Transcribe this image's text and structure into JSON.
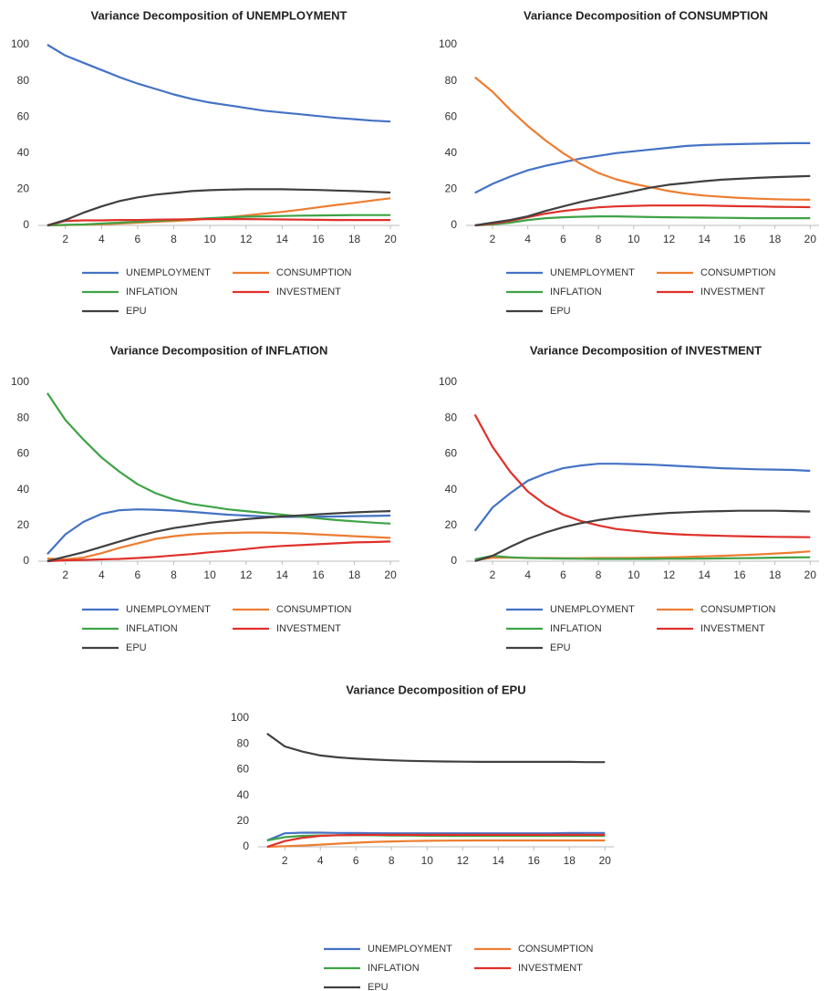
{
  "chart_data": [
    {
      "type": "line",
      "title": "Variance Decomposition of UNEMPLOYMENT",
      "x": [
        1,
        2,
        3,
        4,
        5,
        6,
        7,
        8,
        9,
        10,
        11,
        12,
        13,
        14,
        15,
        16,
        17,
        18,
        19,
        20
      ],
      "xlim": [
        0.5,
        20.5
      ],
      "xticks": [
        2,
        4,
        6,
        8,
        10,
        12,
        14,
        16,
        18,
        20
      ],
      "ylim": [
        0,
        100
      ],
      "yticks": [
        0,
        20,
        40,
        60,
        80,
        100
      ],
      "grid": false,
      "series": [
        {
          "name": "UNEMPLOYMENT",
          "color": "#4472c4",
          "values": [
            100,
            94,
            90,
            86,
            82,
            78.5,
            75.5,
            72.5,
            70,
            68,
            66.5,
            65,
            63.5,
            62.5,
            61.5,
            60.5,
            59.5,
            58.8,
            58,
            57.5
          ]
        },
        {
          "name": "CONSUMPTION",
          "color": "#ed7d31",
          "values": [
            0,
            0.2,
            0.4,
            0.6,
            1,
            1.5,
            2,
            2.5,
            3,
            3.7,
            4.5,
            5.5,
            6.5,
            7.5,
            8.7,
            10,
            11.3,
            12.5,
            13.8,
            15
          ]
        },
        {
          "name": "INFLATION",
          "color": "#3fa346",
          "values": [
            0,
            0.3,
            0.5,
            1,
            1.5,
            2,
            2.5,
            3,
            3.5,
            4,
            4.5,
            4.8,
            5,
            5.2,
            5.4,
            5.5,
            5.6,
            5.7,
            5.7,
            5.7
          ]
        },
        {
          "name": "INVESTMENT",
          "color": "#e0302a",
          "values": [
            0,
            2.5,
            2.8,
            2.8,
            3,
            3,
            3.2,
            3.3,
            3.4,
            3.5,
            3.5,
            3.5,
            3.4,
            3.3,
            3.2,
            3.1,
            3,
            3,
            3,
            3
          ]
        },
        {
          "name": "EPU",
          "color": "#404040",
          "values": [
            0,
            3,
            7,
            10.5,
            13.5,
            15.5,
            17,
            18,
            19,
            19.5,
            19.8,
            20,
            20,
            20,
            19.8,
            19.6,
            19.3,
            19,
            18.6,
            18.2
          ]
        }
      ]
    },
    {
      "type": "line",
      "title": "Variance Decomposition of CONSUMPTION",
      "x": [
        1,
        2,
        3,
        4,
        5,
        6,
        7,
        8,
        9,
        10,
        11,
        12,
        13,
        14,
        15,
        16,
        17,
        18,
        19,
        20
      ],
      "xlim": [
        0.5,
        20.5
      ],
      "xticks": [
        2,
        4,
        6,
        8,
        10,
        12,
        14,
        16,
        18,
        20
      ],
      "ylim": [
        0,
        100
      ],
      "yticks": [
        0,
        20,
        40,
        60,
        80,
        100
      ],
      "grid": false,
      "series": [
        {
          "name": "UNEMPLOYMENT",
          "color": "#4472c4",
          "values": [
            18,
            23,
            27,
            30.5,
            33,
            35,
            37,
            38.5,
            40,
            41,
            42,
            43,
            44,
            44.5,
            44.8,
            45,
            45.2,
            45.4,
            45.5,
            45.5
          ]
        },
        {
          "name": "CONSUMPTION",
          "color": "#ed7d31",
          "values": [
            82,
            74,
            64,
            55,
            47,
            40,
            34,
            29,
            25.5,
            23,
            21,
            19,
            17.5,
            16.5,
            15.8,
            15.2,
            14.8,
            14.5,
            14.3,
            14.2
          ]
        },
        {
          "name": "INFLATION",
          "color": "#3fa346",
          "values": [
            0,
            0.5,
            1.5,
            3,
            4,
            4.5,
            4.8,
            5,
            5,
            4.8,
            4.6,
            4.5,
            4.4,
            4.3,
            4.2,
            4.1,
            4,
            4,
            4,
            4
          ]
        },
        {
          "name": "INVESTMENT",
          "color": "#e0302a",
          "values": [
            0,
            1,
            2.5,
            4.5,
            6.5,
            8,
            9,
            10,
            10.5,
            10.8,
            11,
            11,
            11,
            11,
            10.8,
            10.6,
            10.5,
            10.3,
            10.2,
            10.1
          ]
        },
        {
          "name": "EPU",
          "color": "#404040",
          "values": [
            0,
            1.5,
            3,
            5,
            8,
            10.5,
            13,
            15,
            17,
            19,
            21,
            22.5,
            23.5,
            24.5,
            25.3,
            25.8,
            26.3,
            26.7,
            27,
            27.3
          ]
        }
      ]
    },
    {
      "type": "line",
      "title": "Variance Decomposition of INFLATION",
      "x": [
        1,
        2,
        3,
        4,
        5,
        6,
        7,
        8,
        9,
        10,
        11,
        12,
        13,
        14,
        15,
        16,
        17,
        18,
        19,
        20
      ],
      "xlim": [
        0.5,
        20.5
      ],
      "xticks": [
        2,
        4,
        6,
        8,
        10,
        12,
        14,
        16,
        18,
        20
      ],
      "ylim": [
        0,
        100
      ],
      "yticks": [
        0,
        20,
        40,
        60,
        80,
        100
      ],
      "grid": false,
      "series": [
        {
          "name": "UNEMPLOYMENT",
          "color": "#4472c4",
          "values": [
            4,
            15,
            22,
            26.5,
            28.5,
            29,
            28.8,
            28.3,
            27.6,
            26.8,
            26,
            25.5,
            25,
            24.8,
            24.8,
            24.9,
            25,
            25.2,
            25.3,
            25.5
          ]
        },
        {
          "name": "CONSUMPTION",
          "color": "#ed7d31",
          "values": [
            1.5,
            1,
            2,
            4.5,
            7.5,
            10,
            12.5,
            14,
            15,
            15.5,
            15.8,
            16,
            16,
            15.8,
            15.5,
            15,
            14.5,
            14,
            13.5,
            13
          ]
        },
        {
          "name": "INFLATION",
          "color": "#3fa346",
          "values": [
            94,
            79,
            68,
            58,
            50,
            43,
            38,
            34.5,
            32,
            30.5,
            29,
            28,
            27,
            26,
            25,
            24,
            23,
            22.3,
            21.6,
            21
          ]
        },
        {
          "name": "INVESTMENT",
          "color": "#e0302a",
          "values": [
            0,
            0.5,
            0.7,
            1,
            1.3,
            1.8,
            2.4,
            3.2,
            4,
            5,
            5.8,
            6.8,
            7.8,
            8.5,
            9,
            9.5,
            10,
            10.5,
            10.7,
            11
          ]
        },
        {
          "name": "EPU",
          "color": "#404040",
          "values": [
            0,
            2.5,
            5,
            8,
            11,
            14,
            16.5,
            18.5,
            20,
            21.5,
            22.5,
            23.5,
            24.3,
            25,
            25.6,
            26.2,
            26.8,
            27.3,
            27.7,
            28
          ]
        }
      ]
    },
    {
      "type": "line",
      "title": "Variance Decomposition of INVESTMENT",
      "x": [
        1,
        2,
        3,
        4,
        5,
        6,
        7,
        8,
        9,
        10,
        11,
        12,
        13,
        14,
        15,
        16,
        17,
        18,
        19,
        20
      ],
      "xlim": [
        0.5,
        20.5
      ],
      "xticks": [
        2,
        4,
        6,
        8,
        10,
        12,
        14,
        16,
        18,
        20
      ],
      "ylim": [
        0,
        100
      ],
      "yticks": [
        0,
        20,
        40,
        60,
        80,
        100
      ],
      "grid": false,
      "series": [
        {
          "name": "UNEMPLOYMENT",
          "color": "#4472c4",
          "values": [
            17,
            30,
            38,
            45,
            49,
            52,
            53.5,
            54.5,
            54.5,
            54.3,
            54,
            53.5,
            53,
            52.5,
            52,
            51.7,
            51.4,
            51.2,
            51,
            50.5
          ]
        },
        {
          "name": "CONSUMPTION",
          "color": "#ed7d31",
          "values": [
            0.5,
            2,
            2,
            1.8,
            1.8,
            1.7,
            1.7,
            1.8,
            1.8,
            1.9,
            2,
            2.2,
            2.4,
            2.7,
            3,
            3.4,
            3.8,
            4.3,
            4.8,
            5.5
          ]
        },
        {
          "name": "INFLATION",
          "color": "#3fa346",
          "values": [
            1,
            3,
            2.2,
            1.8,
            1.6,
            1.5,
            1.4,
            1.3,
            1.3,
            1.3,
            1.3,
            1.4,
            1.4,
            1.5,
            1.6,
            1.7,
            1.8,
            2,
            2.1,
            2.2
          ]
        },
        {
          "name": "INVESTMENT",
          "color": "#e0302a",
          "values": [
            82,
            64,
            50,
            39,
            31.5,
            26,
            22.5,
            20,
            18,
            17,
            16,
            15.3,
            14.8,
            14.5,
            14.2,
            14,
            13.8,
            13.6,
            13.5,
            13.4
          ]
        },
        {
          "name": "EPU",
          "color": "#404040",
          "values": [
            0,
            3,
            8,
            12.5,
            16,
            19,
            21.3,
            23,
            24.4,
            25.4,
            26.3,
            27,
            27.4,
            27.8,
            28,
            28.2,
            28.2,
            28.2,
            28,
            27.8
          ]
        }
      ]
    },
    {
      "type": "line",
      "title": "Variance Decomposition of EPU",
      "x": [
        1,
        2,
        3,
        4,
        5,
        6,
        7,
        8,
        9,
        10,
        11,
        12,
        13,
        14,
        15,
        16,
        17,
        18,
        19,
        20
      ],
      "xlim": [
        0.5,
        20.5
      ],
      "xticks": [
        2,
        4,
        6,
        8,
        10,
        12,
        14,
        16,
        18,
        20
      ],
      "ylim": [
        0,
        100
      ],
      "yticks": [
        0,
        20,
        40,
        60,
        80,
        100
      ],
      "grid": false,
      "series": [
        {
          "name": "UNEMPLOYMENT",
          "color": "#4472c4",
          "values": [
            5,
            10.5,
            11,
            11,
            10.8,
            10.7,
            10.6,
            10.5,
            10.5,
            10.5,
            10.5,
            10.5,
            10.5,
            10.5,
            10.5,
            10.5,
            10.5,
            10.7,
            10.8,
            10.8
          ]
        },
        {
          "name": "CONSUMPTION",
          "color": "#ed7d31",
          "values": [
            0,
            0.5,
            1,
            1.7,
            2.5,
            3.2,
            3.8,
            4.2,
            4.5,
            4.7,
            4.8,
            4.9,
            5,
            5,
            5,
            5,
            5,
            5,
            5,
            5
          ]
        },
        {
          "name": "INFLATION",
          "color": "#3fa346",
          "values": [
            5,
            7.5,
            8.5,
            8.8,
            9,
            9,
            9,
            8.8,
            8.7,
            8.6,
            8.5,
            8.5,
            8.5,
            8.5,
            8.5,
            8.5,
            8.5,
            8.5,
            8.5,
            8.5
          ]
        },
        {
          "name": "INVESTMENT",
          "color": "#e0302a",
          "values": [
            0,
            4.5,
            7,
            8.5,
            9,
            9.2,
            9.3,
            9.3,
            9.3,
            9.3,
            9.3,
            9.3,
            9.3,
            9.3,
            9.3,
            9.3,
            9.3,
            9.3,
            9.3,
            9.3
          ]
        },
        {
          "name": "EPU",
          "color": "#404040",
          "values": [
            88,
            78,
            74,
            71,
            69.5,
            68.5,
            67.8,
            67.2,
            66.8,
            66.5,
            66.3,
            66.2,
            66,
            66,
            66,
            66,
            66,
            66,
            65.8,
            65.8
          ]
        }
      ]
    }
  ]
}
